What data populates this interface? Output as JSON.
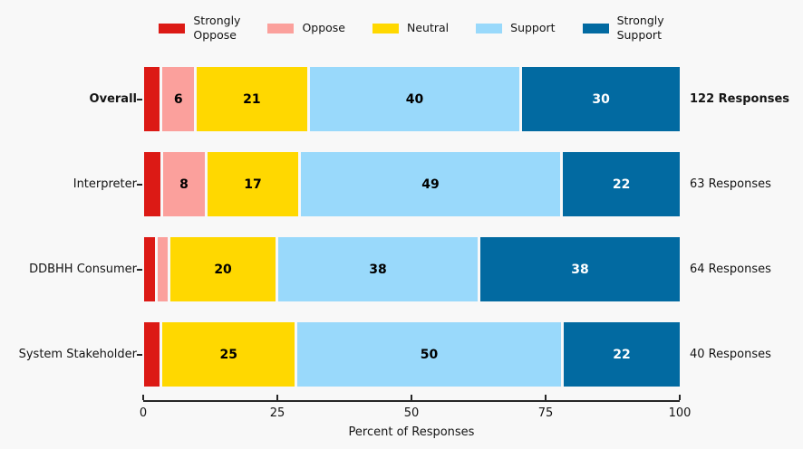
{
  "figure": {
    "background": "#f8f8f8"
  },
  "legend": {
    "items": [
      {
        "name": "strongly-oppose",
        "label": "Strongly\nOppose",
        "color": "#dc1a15"
      },
      {
        "name": "oppose",
        "label": "Oppose",
        "color": "#fba09c"
      },
      {
        "name": "neutral",
        "label": "Neutral",
        "color": "#ffd800"
      },
      {
        "name": "support",
        "label": "Support",
        "color": "#99d9fb"
      },
      {
        "name": "strongly-support",
        "label": "Strongly\nSupport",
        "color": "#026aa1"
      }
    ]
  },
  "chart_data": {
    "type": "bar",
    "orientation": "horizontal",
    "stacked": true,
    "grid": false,
    "categories": [
      "Overall",
      "Interpreter",
      "DDBHH Consumer",
      "System Stakeholder"
    ],
    "series": [
      {
        "name": "Strongly Oppose",
        "color": "#dc1a15",
        "values": [
          3,
          3,
          2,
          3
        ]
      },
      {
        "name": "Oppose",
        "color": "#fba09c",
        "values": [
          6,
          8,
          2,
          0
        ]
      },
      {
        "name": "Neutral",
        "color": "#ffd800",
        "values": [
          21,
          17,
          20,
          25
        ]
      },
      {
        "name": "Support",
        "color": "#99d9fb",
        "values": [
          40,
          49,
          38,
          50
        ]
      },
      {
        "name": "Strongly Support",
        "color": "#026aa1",
        "values": [
          30,
          22,
          38,
          22
        ]
      }
    ],
    "row_annotations": [
      "122 Responses",
      "63 Responses",
      "64 Responses",
      "40 Responses"
    ],
    "bold_rows": [
      "Overall"
    ],
    "value_label_min": 5,
    "white_text_series": [
      "Strongly Support"
    ],
    "xlabel": "Percent of Responses",
    "x_ticks": [
      0,
      25,
      50,
      75,
      100
    ],
    "xlim": [
      0,
      100
    ]
  }
}
